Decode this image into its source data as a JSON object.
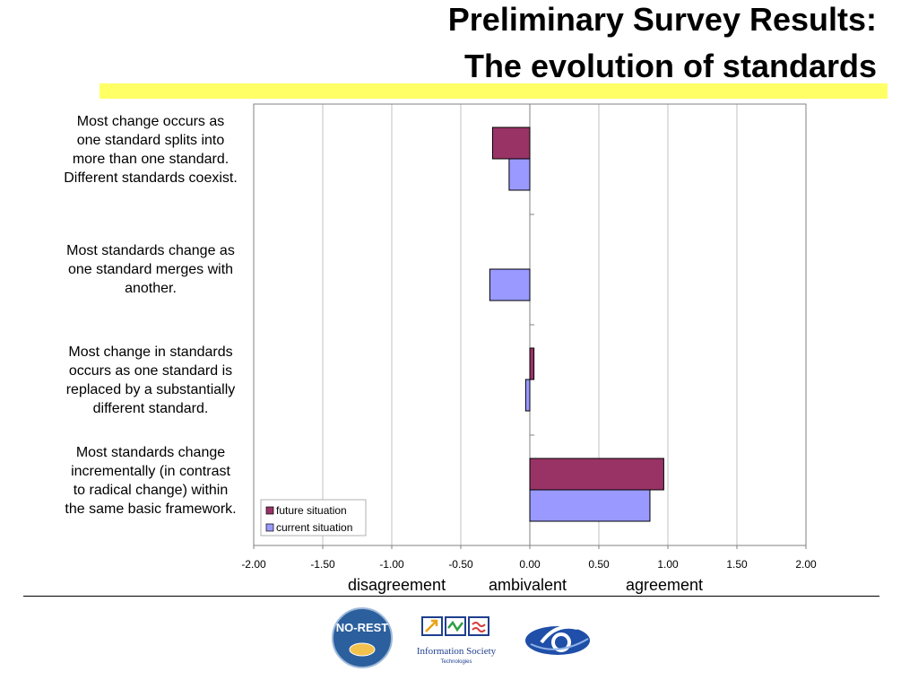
{
  "title_line1": "Preliminary Survey Results:",
  "title_line2": "The evolution of standards",
  "chart_data": {
    "type": "bar",
    "orientation": "horizontal",
    "categories": [
      "Most change occurs as one standard splits into more than one standard. Different standards coexist.",
      "Most standards change as one standard merges with another.",
      "Most change in standards occurs as one standard is replaced by a substantially different standard.",
      "Most standards change incrementally (in contrast to radical change) within the same basic framework."
    ],
    "category_lines": [
      [
        "Most change occurs as",
        "one standard splits into",
        "more than one standard.",
        "Different standards coexist."
      ],
      [
        "Most standards change as",
        "one standard merges with",
        "another."
      ],
      [
        "Most change in standards",
        "occurs as one standard is",
        "replaced by a substantially",
        "different standard."
      ],
      [
        "Most standards change",
        "incrementally (in contrast",
        "to radical change) within",
        "the same basic framework."
      ]
    ],
    "series": [
      {
        "name": "future situation",
        "color": "#993366",
        "values": [
          -0.27,
          0.0,
          0.03,
          0.97
        ]
      },
      {
        "name": "current situation",
        "color": "#9999ff",
        "values": [
          -0.15,
          -0.29,
          -0.03,
          0.87
        ]
      }
    ],
    "xlim": [
      -2.0,
      2.0
    ],
    "x_ticks": [
      "-2.00",
      "-1.50",
      "-1.00",
      "-0.50",
      "0.00",
      "0.50",
      "1.00",
      "1.50",
      "2.00"
    ],
    "x_tick_values": [
      -2.0,
      -1.5,
      -1.0,
      -0.5,
      0.0,
      0.5,
      1.0,
      1.5,
      2.0
    ],
    "x_axis_words": [
      "disagreement",
      "ambivalent",
      "agreement"
    ],
    "grid": true,
    "legend_position": "bottom-left"
  },
  "logos": {
    "norest_text": "NO-REST",
    "ist_line1": "Information Society",
    "ist_line2": "Technologies"
  },
  "colors": {
    "highlight": "#ffff66",
    "grid": "#c0c0c0",
    "plot_border": "#808080"
  }
}
